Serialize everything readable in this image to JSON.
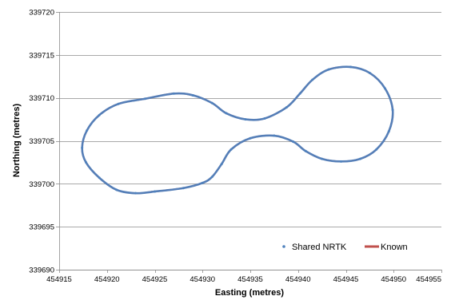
{
  "chart_data": {
    "type": "scatter",
    "title": "",
    "xlabel": "Easting (metres)",
    "ylabel": "Northing (metres)",
    "xlim": [
      454915,
      454955
    ],
    "ylim": [
      339690,
      339720
    ],
    "xticks": [
      454915,
      454920,
      454925,
      454930,
      454935,
      454940,
      454945,
      454950,
      454955
    ],
    "yticks": [
      339690,
      339695,
      339700,
      339705,
      339710,
      339715,
      339720
    ],
    "grid": "horizontal",
    "legend": "bottom-right",
    "series": [
      {
        "name": "Shared NRTK",
        "style": "markers",
        "color": "#4F81BD",
        "points": [
          [
            454931.0,
            339700.8
          ],
          [
            454930.0,
            339700.1
          ],
          [
            454928.0,
            339699.5
          ],
          [
            454925.0,
            339699.1
          ],
          [
            454923.0,
            339698.9
          ],
          [
            454921.0,
            339699.3
          ],
          [
            454919.2,
            339700.7
          ],
          [
            454917.8,
            339702.5
          ],
          [
            454917.4,
            339704.2
          ],
          [
            454917.9,
            339706.2
          ],
          [
            454919.2,
            339708.0
          ],
          [
            454921.2,
            339709.3
          ],
          [
            454924.0,
            339709.9
          ],
          [
            454927.0,
            339710.5
          ],
          [
            454929.0,
            339710.3
          ],
          [
            454931.0,
            339709.4
          ],
          [
            454932.5,
            339708.2
          ],
          [
            454934.5,
            339707.5
          ],
          [
            454936.5,
            339707.6
          ],
          [
            454938.8,
            339708.9
          ],
          [
            454940.2,
            339710.5
          ],
          [
            454941.5,
            339712.1
          ],
          [
            454943.2,
            339713.3
          ],
          [
            454945.5,
            339713.6
          ],
          [
            454947.5,
            339712.9
          ],
          [
            454949.1,
            339711.1
          ],
          [
            454949.9,
            339708.6
          ],
          [
            454949.5,
            339706.1
          ],
          [
            454948.2,
            339704.0
          ],
          [
            454946.5,
            339702.9
          ],
          [
            454944.5,
            339702.6
          ],
          [
            454942.5,
            339702.9
          ],
          [
            454940.8,
            339703.8
          ],
          [
            454939.5,
            339704.9
          ],
          [
            454937.5,
            339705.6
          ],
          [
            454935.0,
            339705.3
          ],
          [
            454933.0,
            339704.0
          ],
          [
            454932.0,
            339702.3
          ]
        ]
      },
      {
        "name": "Known",
        "style": "line",
        "color": "#C0504D",
        "points": [
          [
            454931.0,
            339700.8
          ],
          [
            454930.0,
            339700.1
          ],
          [
            454928.0,
            339699.5
          ],
          [
            454925.0,
            339699.1
          ],
          [
            454923.0,
            339698.9
          ],
          [
            454921.0,
            339699.3
          ],
          [
            454919.2,
            339700.7
          ],
          [
            454917.8,
            339702.5
          ],
          [
            454917.4,
            339704.2
          ],
          [
            454917.9,
            339706.2
          ],
          [
            454919.2,
            339708.0
          ],
          [
            454921.2,
            339709.3
          ],
          [
            454924.0,
            339709.9
          ],
          [
            454927.0,
            339710.5
          ],
          [
            454929.0,
            339710.3
          ],
          [
            454931.0,
            339709.4
          ],
          [
            454932.5,
            339708.2
          ],
          [
            454934.5,
            339707.5
          ],
          [
            454936.5,
            339707.6
          ],
          [
            454938.8,
            339708.9
          ],
          [
            454940.2,
            339710.5
          ],
          [
            454941.5,
            339712.1
          ],
          [
            454943.2,
            339713.3
          ],
          [
            454945.5,
            339713.6
          ],
          [
            454947.5,
            339712.9
          ],
          [
            454949.1,
            339711.1
          ],
          [
            454949.9,
            339708.6
          ],
          [
            454949.5,
            339706.1
          ],
          [
            454948.2,
            339704.0
          ],
          [
            454946.5,
            339702.9
          ],
          [
            454944.5,
            339702.6
          ],
          [
            454942.5,
            339702.9
          ],
          [
            454940.8,
            339703.8
          ],
          [
            454939.5,
            339704.9
          ],
          [
            454937.5,
            339705.6
          ],
          [
            454935.0,
            339705.3
          ],
          [
            454933.0,
            339704.0
          ],
          [
            454932.0,
            339702.3
          ]
        ]
      }
    ]
  }
}
